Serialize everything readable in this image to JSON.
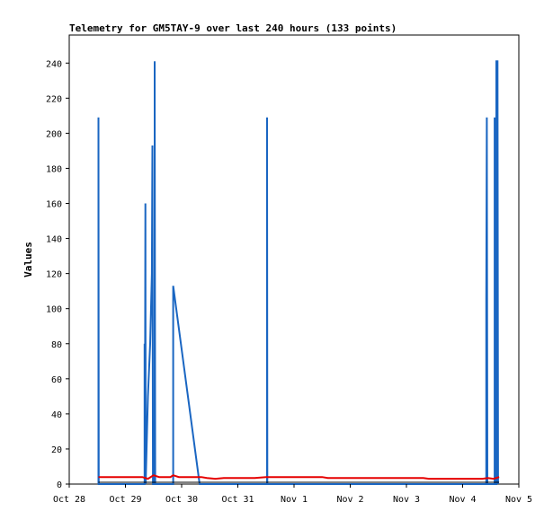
{
  "chart_data": {
    "type": "line",
    "title": "Telemetry for GM5TAY-9 over last 240 hours (133 points)",
    "xlabel": "",
    "ylabel": "Values",
    "x_ticks": [
      "Oct 28",
      "Oct 29",
      "Oct 30",
      "Oct 31",
      "Nov 1",
      "Nov 2",
      "Nov 3",
      "Nov 4",
      "Nov 5"
    ],
    "y_ticks": [
      0,
      20,
      40,
      60,
      80,
      100,
      120,
      140,
      160,
      180,
      200,
      220,
      240
    ],
    "xlim_days": [
      0,
      8
    ],
    "ylim": [
      0,
      256
    ],
    "grid": false,
    "legend": "none",
    "colors": {
      "blue": "#1a66c2",
      "red": "#e60000",
      "black": "#000000"
    },
    "series": [
      {
        "color": "blue",
        "points": [
          [
            0.52,
            0
          ],
          [
            0.52,
            209
          ],
          [
            0.525,
            0
          ],
          [
            1.34,
            0
          ],
          [
            1.34,
            80
          ],
          [
            1.345,
            0
          ],
          [
            1.355,
            160
          ],
          [
            1.36,
            0
          ],
          [
            1.4,
            50
          ],
          [
            1.44,
            80
          ],
          [
            1.47,
            120
          ],
          [
            1.48,
            193
          ],
          [
            1.49,
            0
          ],
          [
            1.52,
            0
          ],
          [
            1.52,
            241
          ],
          [
            1.53,
            0
          ],
          [
            1.85,
            0
          ],
          [
            1.85,
            113
          ],
          [
            2.32,
            0
          ],
          [
            3.52,
            0
          ],
          [
            3.52,
            209
          ],
          [
            3.525,
            0
          ],
          [
            7.42,
            0
          ],
          [
            7.42,
            105
          ],
          [
            7.43,
            209
          ],
          [
            7.44,
            0
          ],
          [
            7.57,
            0
          ],
          [
            7.57,
            209
          ],
          [
            7.58,
            0
          ],
          [
            7.6,
            0
          ],
          [
            7.6,
            241
          ],
          [
            7.62,
            241
          ],
          [
            7.63,
            0
          ]
        ]
      },
      {
        "color": "red",
        "points": [
          [
            0.52,
            4
          ],
          [
            1.3,
            4
          ],
          [
            1.4,
            3
          ],
          [
            1.5,
            5
          ],
          [
            1.6,
            4
          ],
          [
            1.8,
            4
          ],
          [
            1.85,
            5
          ],
          [
            1.95,
            4
          ],
          [
            2.35,
            4
          ],
          [
            2.45,
            3.5
          ],
          [
            2.6,
            3
          ],
          [
            2.75,
            3.5
          ],
          [
            3.0,
            3.5
          ],
          [
            3.3,
            3.5
          ],
          [
            3.5,
            4
          ],
          [
            4.5,
            4
          ],
          [
            4.6,
            3.5
          ],
          [
            6.3,
            3.5
          ],
          [
            6.4,
            3
          ],
          [
            7.35,
            3
          ],
          [
            7.45,
            3.5
          ],
          [
            7.55,
            3
          ],
          [
            7.65,
            4
          ]
        ]
      },
      {
        "color": "black",
        "points": [
          [
            0.52,
            1
          ],
          [
            7.65,
            1
          ]
        ]
      }
    ]
  }
}
